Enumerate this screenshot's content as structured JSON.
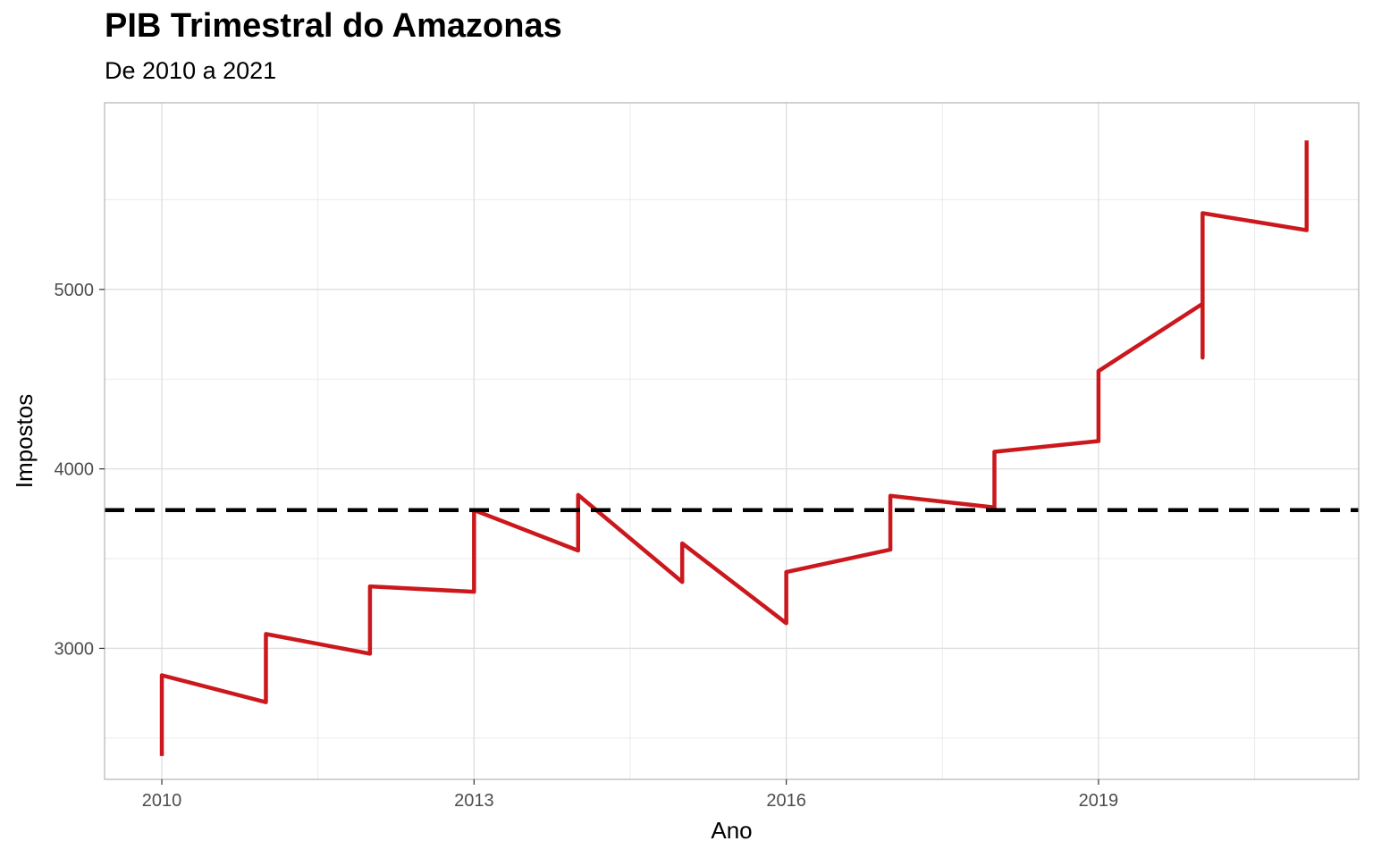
{
  "chart_data": {
    "type": "line",
    "title": "PIB Trimestral do Amazonas",
    "subtitle": "De 2010 a 2021",
    "xlabel": "Ano",
    "ylabel": "Impostos",
    "xlim": [
      2009.45,
      2021.5
    ],
    "ylim": [
      2270,
      6040
    ],
    "x_ticks": [
      2010,
      2013,
      2016,
      2019
    ],
    "x_tick_labels": [
      "2010",
      "2013",
      "2016",
      "2019"
    ],
    "x_minor_ticks": [
      2011.5,
      2014.5,
      2017.5,
      2020.5
    ],
    "y_ticks": [
      3000,
      4000,
      5000
    ],
    "y_tick_labels": [
      "3000",
      "4000",
      "5000"
    ],
    "y_minor_ticks": [
      2500,
      3500,
      4500,
      5500
    ],
    "grid": true,
    "reference_line": {
      "y": 3770,
      "style": "dashed",
      "color": "#000000"
    },
    "series": [
      {
        "name": "Impostos",
        "color": "#cb181d",
        "points": [
          [
            2010,
            2400
          ],
          [
            2010,
            2850
          ],
          [
            2011,
            2700
          ],
          [
            2011,
            3080
          ],
          [
            2012,
            2970
          ],
          [
            2012,
            3345
          ],
          [
            2013,
            3315
          ],
          [
            2013,
            3770
          ],
          [
            2014,
            3545
          ],
          [
            2014,
            3855
          ],
          [
            2015,
            3370
          ],
          [
            2015,
            3585
          ],
          [
            2016,
            3140
          ],
          [
            2016,
            3425
          ],
          [
            2017,
            3550
          ],
          [
            2017,
            3850
          ],
          [
            2018,
            3785
          ],
          [
            2018,
            4095
          ],
          [
            2019,
            4155
          ],
          [
            2019,
            4545
          ],
          [
            2020,
            4920
          ],
          [
            2020,
            4620
          ],
          [
            2020,
            5425
          ],
          [
            2021,
            5330
          ],
          [
            2021,
            5830
          ]
        ]
      }
    ]
  }
}
